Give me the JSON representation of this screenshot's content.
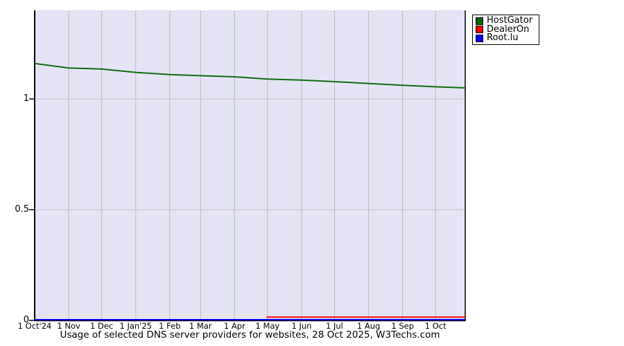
{
  "chart_data": {
    "type": "line",
    "title": "Usage of selected DNS server providers for websites, 28 Oct 2025, W3Techs.com",
    "xlabel": "",
    "ylabel": "",
    "grid": true,
    "legend_position": "top-right",
    "x_axis": {
      "tick_labels": [
        "1 Oct'24",
        "1 Nov",
        "1 Dec",
        "1 Jan'25",
        "1 Feb",
        "1 Mar",
        "1 Apr",
        "1 May",
        "1 Jun",
        "1 Jul",
        "1 Aug",
        "1 Sep",
        "1 Oct"
      ],
      "tick_day_offsets": [
        0,
        31,
        61,
        92,
        123,
        151,
        182,
        212,
        243,
        273,
        304,
        335,
        365
      ],
      "range_days": [
        0,
        392
      ]
    },
    "y_axis": {
      "tick_labels": [
        "0",
        "0.5",
        "1"
      ],
      "tick_values": [
        0,
        0.5,
        1
      ],
      "range": [
        0,
        1.4
      ]
    },
    "series": [
      {
        "name": "HostGator",
        "color": "#0a6e0a",
        "x_days": [
          0,
          31,
          61,
          92,
          123,
          151,
          182,
          212,
          243,
          273,
          304,
          335,
          365,
          392
        ],
        "values": [
          1.16,
          1.14,
          1.135,
          1.12,
          1.11,
          1.105,
          1.1,
          1.09,
          1.085,
          1.078,
          1.07,
          1.062,
          1.055,
          1.05
        ]
      },
      {
        "name": "DealerOn",
        "color": "#ff0000",
        "x_days": [
          211,
          392
        ],
        "values": [
          0.015,
          0.015
        ]
      },
      {
        "name": "Root.lu",
        "color": "#0000ff",
        "x_days": [
          0,
          392
        ],
        "values": [
          0,
          0
        ]
      }
    ],
    "colors": {
      "plot_background": "#e4e4f6",
      "outer_background": "#ffffff",
      "grid_vertical": "#b8b8b8",
      "grid_horizontal": "#c6c6c6",
      "axis": "#000000"
    },
    "legend": {
      "swatch_colors": [
        "#006400",
        "#ff0000",
        "#0000ff"
      ],
      "labels": [
        "HostGator",
        "DealerOn",
        "Root.lu"
      ]
    }
  }
}
